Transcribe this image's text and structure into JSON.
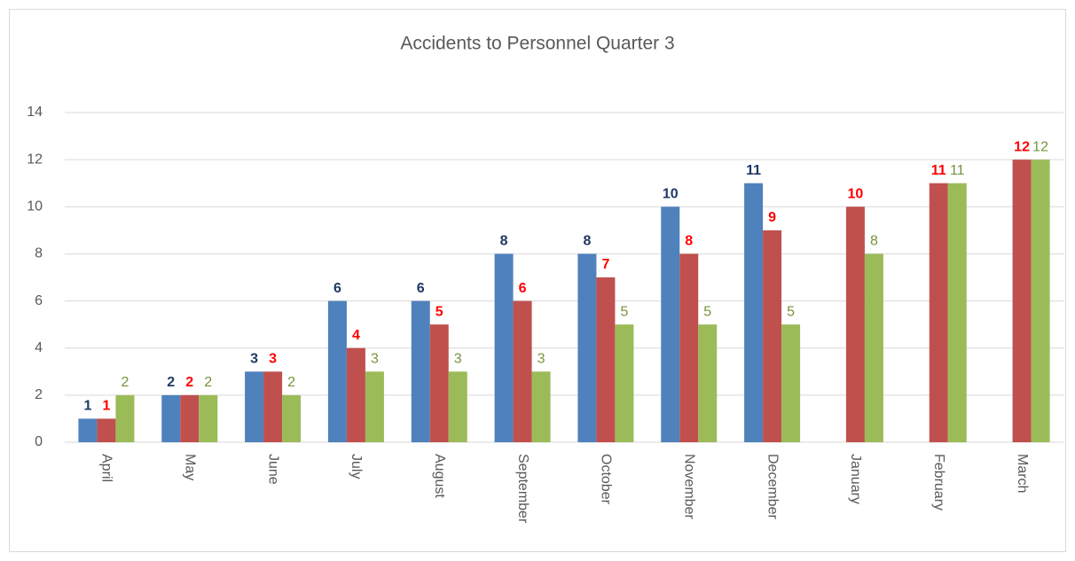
{
  "chart_data": {
    "type": "bar",
    "title": "Accidents to Personnel Quarter 3",
    "categories": [
      "April",
      "May",
      "June",
      "July",
      "August",
      "September",
      "October",
      "November",
      "December",
      "January",
      "February",
      "March"
    ],
    "series": [
      {
        "color": "#4f81bd",
        "label_color": "#1f3864",
        "label_bold": true,
        "values": [
          1,
          2,
          3,
          6,
          6,
          8,
          8,
          10,
          11,
          null,
          null,
          null
        ]
      },
      {
        "color": "#c0504d",
        "label_color": "#ff0000",
        "label_bold": true,
        "values": [
          1,
          2,
          3,
          4,
          5,
          6,
          7,
          8,
          9,
          10,
          11,
          12
        ]
      },
      {
        "color": "#9bbb59",
        "label_color": "#77933c",
        "label_bold": false,
        "values": [
          2,
          2,
          2,
          3,
          3,
          3,
          5,
          5,
          5,
          8,
          11,
          12
        ]
      }
    ],
    "ylim": [
      0,
      14
    ],
    "yticks": [
      0,
      2,
      4,
      6,
      8,
      10,
      12,
      14
    ],
    "grid": true
  }
}
